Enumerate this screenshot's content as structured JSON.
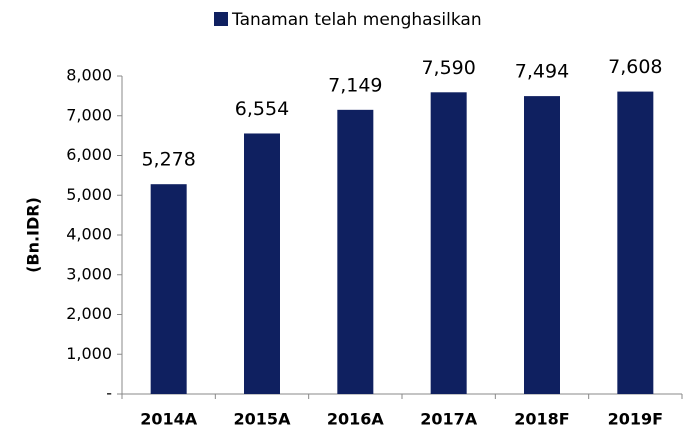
{
  "chart_data": {
    "type": "bar",
    "legend": "Tanaman telah menghasilkan",
    "ylabel": "(Bn.IDR)",
    "categories": [
      "2014A",
      "2015A",
      "2016A",
      "2017A",
      "2018F",
      "2019F"
    ],
    "series": [
      {
        "name": "Tanaman telah menghasilkan",
        "color": "#0f2060",
        "values": [
          5278,
          6554,
          7149,
          7590,
          7494,
          7608
        ],
        "value_labels": [
          "5,278",
          "6,554",
          "7,149",
          "7,590",
          "7,494",
          "7,608"
        ]
      }
    ],
    "ylim": [
      0,
      8000
    ],
    "yticks": [
      {
        "value": 0,
        "label": "-"
      },
      {
        "value": 1000,
        "label": "1,000"
      },
      {
        "value": 2000,
        "label": "2,000"
      },
      {
        "value": 3000,
        "label": "3,000"
      },
      {
        "value": 4000,
        "label": "4,000"
      },
      {
        "value": 5000,
        "label": "5,000"
      },
      {
        "value": 6000,
        "label": "6,000"
      },
      {
        "value": 7000,
        "label": "7,000"
      },
      {
        "value": 8000,
        "label": "8,000"
      }
    ],
    "grid": false
  }
}
